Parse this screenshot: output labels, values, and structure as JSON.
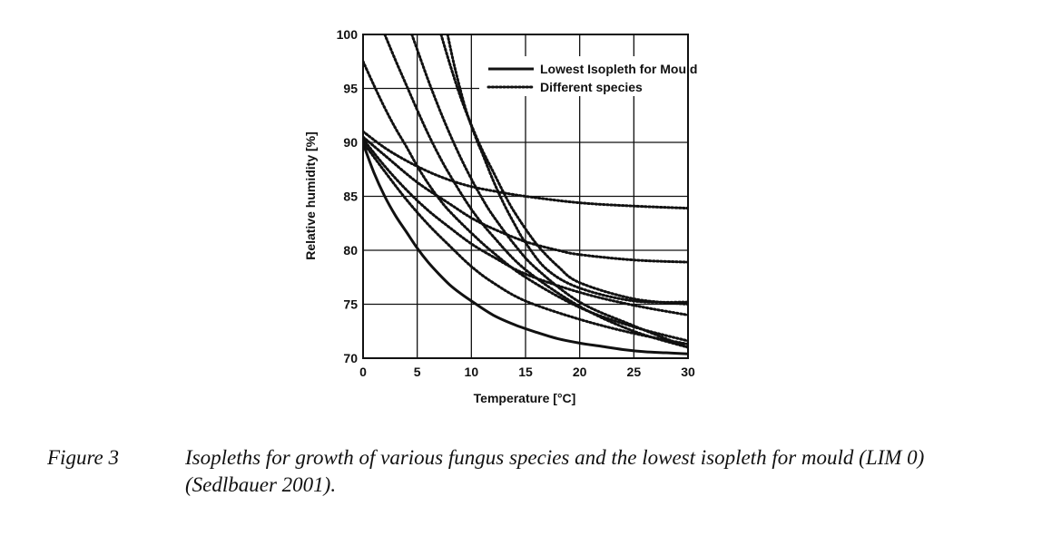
{
  "chart_data": {
    "type": "line",
    "xlabel": "Temperature [°C]",
    "ylabel": "Relative humidity [%]",
    "xlim": [
      0,
      30
    ],
    "ylim": [
      70,
      100
    ],
    "x_ticks": [
      "0",
      "5",
      "10",
      "15",
      "20",
      "25",
      "30"
    ],
    "y_ticks": [
      "70",
      "75",
      "80",
      "85",
      "90",
      "95",
      "100"
    ],
    "grid": true,
    "legend_position": "top-right",
    "legend": [
      {
        "label": "Lowest Isopleth for Mould",
        "style": "solid"
      },
      {
        "label": "Different species",
        "style": "dotted"
      }
    ],
    "series": [
      {
        "name": "Lowest Isopleth for Mould",
        "style": "solid",
        "x": [
          0,
          1,
          2,
          3,
          4,
          5,
          6,
          7,
          8,
          9,
          10,
          12,
          14,
          16,
          18,
          20,
          22,
          24,
          26,
          28,
          30
        ],
        "y": [
          89.9,
          87.2,
          85.0,
          83.2,
          81.7,
          80.2,
          78.9,
          77.8,
          76.8,
          76.0,
          75.3,
          74.0,
          73.1,
          72.4,
          71.8,
          71.4,
          71.1,
          70.8,
          70.6,
          70.5,
          70.4
        ]
      },
      {
        "style": "dotted",
        "x": [
          0,
          2,
          4,
          6,
          8,
          10,
          12,
          15,
          20,
          25,
          30
        ],
        "y": [
          91.0,
          89.5,
          88.3,
          87.3,
          86.5,
          85.9,
          85.5,
          85.0,
          84.4,
          84.1,
          83.9
        ]
      },
      {
        "style": "dotted",
        "x": [
          0,
          2,
          5,
          8,
          10,
          12,
          15,
          18,
          20,
          25,
          30
        ],
        "y": [
          90.5,
          88.8,
          86.3,
          84.3,
          83.0,
          82.0,
          80.8,
          80.0,
          79.6,
          79.1,
          78.9
        ]
      },
      {
        "style": "dotted",
        "x": [
          0,
          2,
          4,
          6,
          8,
          10,
          12,
          15,
          20,
          25,
          30
        ],
        "y": [
          90.3,
          87.8,
          85.6,
          83.7,
          82.1,
          80.6,
          79.4,
          77.8,
          76.1,
          74.9,
          74.0
        ]
      },
      {
        "style": "dotted",
        "x": [
          0,
          2,
          4,
          6,
          8,
          10,
          12,
          15,
          20,
          25,
          30
        ],
        "y": [
          90.0,
          87.3,
          84.7,
          82.4,
          80.4,
          78.5,
          77.0,
          75.3,
          73.6,
          72.3,
          71.3
        ]
      },
      {
        "style": "dotted",
        "x": [
          0,
          1,
          2,
          3,
          4,
          5,
          6,
          7,
          8,
          10,
          12,
          15,
          20,
          25,
          30
        ],
        "y": [
          97.5,
          95.3,
          93.2,
          91.3,
          89.6,
          87.8,
          86.2,
          84.8,
          83.6,
          81.6,
          79.8,
          77.5,
          74.7,
          72.9,
          71.6
        ]
      },
      {
        "style": "dotted",
        "x": [
          2,
          3,
          4,
          5,
          6,
          7,
          8,
          10,
          12,
          15,
          20,
          25,
          30
        ],
        "y": [
          100.0,
          97.6,
          95.3,
          93.0,
          90.8,
          88.8,
          87.0,
          83.8,
          81.3,
          78.2,
          74.8,
          72.5,
          71.0
        ]
      },
      {
        "style": "dotted",
        "x": [
          4.5,
          5,
          6,
          7,
          8,
          9,
          10,
          11,
          12,
          14,
          16,
          20,
          25,
          30
        ],
        "y": [
          100.0,
          98.6,
          95.8,
          93.2,
          90.8,
          88.6,
          86.6,
          84.8,
          83.2,
          80.5,
          78.3,
          75.2,
          73.0,
          71.0
        ]
      },
      {
        "style": "dotted",
        "x": [
          7.2,
          8,
          9,
          10,
          11,
          12,
          13,
          14,
          16,
          18,
          20,
          25,
          30
        ],
        "y": [
          100.0,
          97.3,
          94.2,
          91.6,
          89.3,
          87.3,
          85.3,
          83.5,
          80.6,
          78.5,
          77.0,
          75.5,
          75.0
        ]
      },
      {
        "style": "dotted",
        "x": [
          7.8,
          8.5,
          9.5,
          10.5,
          11,
          12,
          13,
          14,
          15,
          17,
          20,
          25,
          30
        ],
        "y": [
          100.0,
          96.8,
          93.0,
          90.2,
          89.0,
          86.5,
          84.3,
          82.4,
          80.7,
          78.2,
          76.5,
          75.3,
          75.2
        ]
      }
    ]
  },
  "caption": {
    "label": "Figure 3",
    "text": "Isopleths for growth of various fungus species and the lowest isopleth for mould (LIM 0) (Sedlbauer 2001)."
  }
}
